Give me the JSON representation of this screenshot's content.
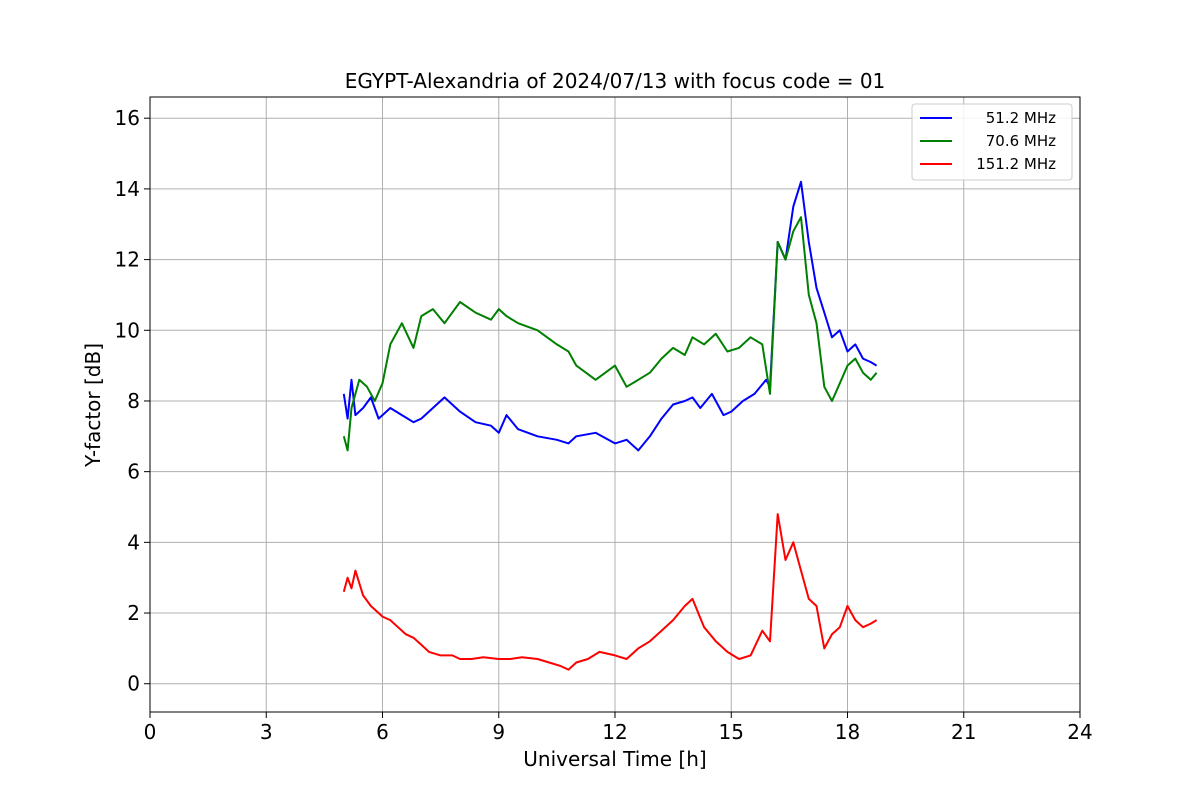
{
  "chart_data": {
    "type": "line",
    "title": "EGYPT-Alexandria of 2024/07/13 with focus code = 01",
    "xlabel": "Universal Time [h]",
    "ylabel": "Y-factor [dB]",
    "xlim": [
      0,
      24
    ],
    "ylim": [
      -0.8,
      16.6
    ],
    "xticks": [
      0,
      3,
      6,
      9,
      12,
      15,
      18,
      21,
      24
    ],
    "yticks": [
      0,
      2,
      4,
      6,
      8,
      10,
      12,
      14,
      16
    ],
    "grid": true,
    "legend_position": "top-right",
    "series": [
      {
        "name": "  51.2 MHz",
        "color": "#0000ff",
        "x": [
          5.0,
          5.1,
          5.2,
          5.3,
          5.5,
          5.7,
          5.9,
          6.0,
          6.2,
          6.5,
          6.8,
          7.0,
          7.3,
          7.6,
          8.0,
          8.4,
          8.8,
          9.0,
          9.2,
          9.5,
          10.0,
          10.5,
          10.8,
          11.0,
          11.5,
          12.0,
          12.3,
          12.6,
          12.9,
          13.2,
          13.5,
          13.8,
          14.0,
          14.2,
          14.5,
          14.8,
          15.0,
          15.3,
          15.6,
          15.9,
          16.0,
          16.2,
          16.4,
          16.6,
          16.8,
          17.0,
          17.2,
          17.4,
          17.6,
          17.8,
          18.0,
          18.2,
          18.4,
          18.6,
          18.75
        ],
        "y": [
          8.2,
          7.5,
          8.6,
          7.6,
          7.8,
          8.1,
          7.5,
          7.6,
          7.8,
          7.6,
          7.4,
          7.5,
          7.8,
          8.1,
          7.7,
          7.4,
          7.3,
          7.1,
          7.6,
          7.2,
          7.0,
          6.9,
          6.8,
          7.0,
          7.1,
          6.8,
          6.9,
          6.6,
          7.0,
          7.5,
          7.9,
          8.0,
          8.1,
          7.8,
          8.2,
          7.6,
          7.7,
          8.0,
          8.2,
          8.6,
          8.4,
          12.5,
          12.0,
          13.5,
          14.2,
          12.5,
          11.2,
          10.5,
          9.8,
          10.0,
          9.4,
          9.6,
          9.2,
          9.1,
          9.0
        ]
      },
      {
        "name": "  70.6 MHz",
        "color": "#008000",
        "x": [
          5.0,
          5.1,
          5.2,
          5.4,
          5.6,
          5.8,
          6.0,
          6.2,
          6.5,
          6.8,
          7.0,
          7.3,
          7.6,
          8.0,
          8.4,
          8.8,
          9.0,
          9.2,
          9.5,
          10.0,
          10.5,
          10.8,
          11.0,
          11.5,
          12.0,
          12.3,
          12.6,
          12.9,
          13.2,
          13.5,
          13.8,
          14.0,
          14.3,
          14.6,
          14.9,
          15.2,
          15.5,
          15.8,
          16.0,
          16.2,
          16.4,
          16.6,
          16.8,
          17.0,
          17.2,
          17.4,
          17.6,
          17.8,
          18.0,
          18.2,
          18.4,
          18.6,
          18.75
        ],
        "y": [
          7.0,
          6.6,
          7.8,
          8.6,
          8.4,
          8.0,
          8.5,
          9.6,
          10.2,
          9.5,
          10.4,
          10.6,
          10.2,
          10.8,
          10.5,
          10.3,
          10.6,
          10.4,
          10.2,
          10.0,
          9.6,
          9.4,
          9.0,
          8.6,
          9.0,
          8.4,
          8.6,
          8.8,
          9.2,
          9.5,
          9.3,
          9.8,
          9.6,
          9.9,
          9.4,
          9.5,
          9.8,
          9.6,
          8.2,
          12.5,
          12.0,
          12.8,
          13.2,
          11.0,
          10.2,
          8.4,
          8.0,
          8.5,
          9.0,
          9.2,
          8.8,
          8.6,
          8.8
        ]
      },
      {
        "name": "151.2 MHz",
        "color": "#ff0000",
        "x": [
          5.0,
          5.1,
          5.2,
          5.3,
          5.5,
          5.7,
          5.9,
          6.0,
          6.2,
          6.4,
          6.6,
          6.8,
          7.0,
          7.2,
          7.5,
          7.8,
          8.0,
          8.3,
          8.6,
          9.0,
          9.3,
          9.6,
          10.0,
          10.3,
          10.6,
          10.8,
          11.0,
          11.3,
          11.6,
          12.0,
          12.3,
          12.6,
          12.9,
          13.2,
          13.5,
          13.8,
          14.0,
          14.3,
          14.6,
          14.9,
          15.2,
          15.5,
          15.8,
          16.0,
          16.2,
          16.4,
          16.6,
          16.8,
          17.0,
          17.2,
          17.4,
          17.6,
          17.8,
          18.0,
          18.2,
          18.4,
          18.6,
          18.75
        ],
        "y": [
          2.6,
          3.0,
          2.7,
          3.2,
          2.5,
          2.2,
          2.0,
          1.9,
          1.8,
          1.6,
          1.4,
          1.3,
          1.1,
          0.9,
          0.8,
          0.8,
          0.7,
          0.7,
          0.75,
          0.7,
          0.7,
          0.75,
          0.7,
          0.6,
          0.5,
          0.4,
          0.6,
          0.7,
          0.9,
          0.8,
          0.7,
          1.0,
          1.2,
          1.5,
          1.8,
          2.2,
          2.4,
          1.6,
          1.2,
          0.9,
          0.7,
          0.8,
          1.5,
          1.2,
          4.8,
          3.5,
          4.0,
          3.2,
          2.4,
          2.2,
          1.0,
          1.4,
          1.6,
          2.2,
          1.8,
          1.6,
          1.7,
          1.8
        ]
      }
    ]
  }
}
